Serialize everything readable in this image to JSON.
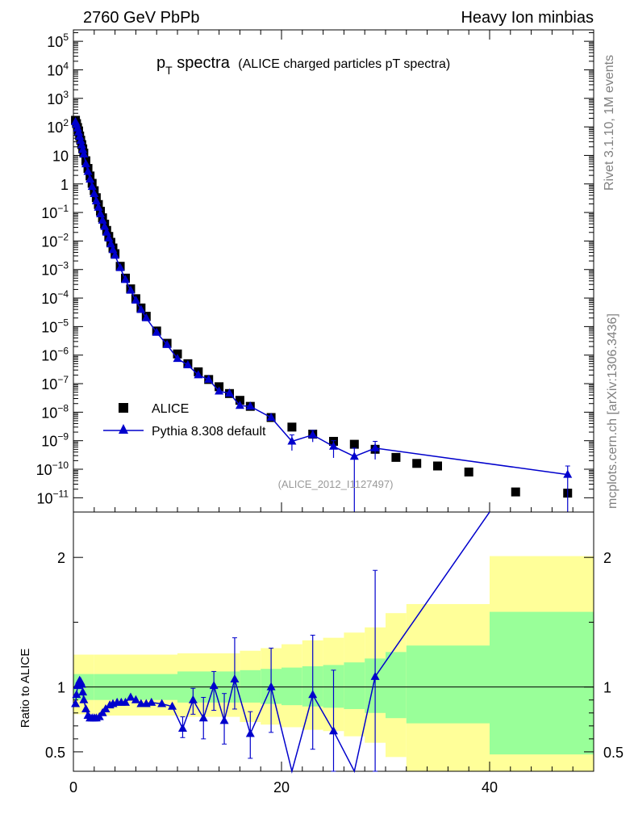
{
  "header": {
    "left": "2760 GeV PbPb",
    "right": "Heavy Ion minbias"
  },
  "side_labels": {
    "top": "Rivet 3.1.10,  1M events",
    "bottom": "mcplots.cern.ch [arXiv:1306.3436]"
  },
  "chart_data": [
    {
      "type": "scatter",
      "title_main": "p",
      "title_sub": "T",
      "title_rest": " spectra",
      "title_note": "(ALICE charged particles pT spectra)",
      "reference_note": "(ALICE_2012_I1127497)",
      "xlim": [
        0,
        50
      ],
      "ylog": true,
      "ylim_exp": [
        -11.5,
        5.4
      ],
      "yticks": [
        {
          "exp": 5,
          "label": "10",
          "sup": "5"
        },
        {
          "exp": 4,
          "label": "10",
          "sup": "4"
        },
        {
          "exp": 3,
          "label": "10",
          "sup": "3"
        },
        {
          "exp": 2,
          "label": "10",
          "sup": "2"
        },
        {
          "exp": 1,
          "label": "10",
          "sup": ""
        },
        {
          "exp": 0,
          "label": "1",
          "sup": ""
        },
        {
          "exp": -1,
          "label": "10",
          "sup": "−1"
        },
        {
          "exp": -2,
          "label": "10",
          "sup": "−2"
        },
        {
          "exp": -3,
          "label": "10",
          "sup": "−3"
        },
        {
          "exp": -4,
          "label": "10",
          "sup": "−4"
        },
        {
          "exp": -5,
          "label": "10",
          "sup": "−5"
        },
        {
          "exp": -6,
          "label": "10",
          "sup": "−6"
        },
        {
          "exp": -7,
          "label": "10",
          "sup": "−7"
        },
        {
          "exp": -8,
          "label": "10",
          "sup": "−8"
        },
        {
          "exp": -9,
          "label": "10",
          "sup": "−9"
        },
        {
          "exp": -10,
          "label": "10",
          "sup": "−10"
        },
        {
          "exp": -11,
          "label": "10",
          "sup": "−11"
        }
      ],
      "legend": {
        "position": "lower-left",
        "items": [
          "ALICE",
          "Pythia 8.308 default"
        ]
      },
      "series": [
        {
          "name": "ALICE",
          "marker": "square",
          "color": "#000000",
          "x": [
            0.2,
            0.3,
            0.4,
            0.5,
            0.6,
            0.7,
            0.8,
            0.9,
            1.0,
            1.2,
            1.4,
            1.6,
            1.8,
            2.0,
            2.2,
            2.4,
            2.6,
            2.8,
            3.0,
            3.2,
            3.4,
            3.6,
            3.8,
            4.0,
            4.5,
            5.0,
            5.5,
            6.0,
            6.5,
            7.0,
            8.0,
            9.0,
            10.0,
            11.0,
            12.0,
            13.0,
            14.0,
            15.0,
            16.0,
            17.0,
            19.0,
            21.0,
            23.0,
            25.0,
            27.0,
            29.0,
            31.0,
            33.0,
            35.0,
            38.0,
            42.5,
            47.5
          ],
          "y": [
            170.0,
            130.0,
            95.0,
            68.0,
            48.0,
            34.0,
            24.0,
            17.0,
            12.0,
            6.5,
            3.5,
            1.9,
            1.05,
            0.58,
            0.33,
            0.19,
            0.11,
            0.065,
            0.039,
            0.0235,
            0.0145,
            0.009,
            0.0057,
            0.0036,
            0.0013,
            0.0005,
            0.00021,
            9.5e-05,
            4.5e-05,
            2.3e-05,
            7e-06,
            2.6e-06,
            1.1e-06,
            5e-07,
            2.6e-07,
            1.4e-07,
            7.8e-08,
            4.5e-08,
            2.6e-08,
            1.6e-08,
            6.5e-09,
            3e-09,
            1.7e-09,
            9.5e-10,
            7.5e-10,
            5e-10,
            2.6e-10,
            1.6e-10,
            1.3e-10,
            8e-11,
            1.6e-11,
            1.45e-11
          ]
        },
        {
          "name": "Pythia 8.308 default",
          "marker": "triangle",
          "color": "#0000cc",
          "x": [
            0.2,
            0.3,
            0.4,
            0.5,
            0.6,
            0.7,
            0.8,
            0.9,
            1.0,
            1.2,
            1.4,
            1.6,
            1.8,
            2.0,
            2.2,
            2.4,
            2.6,
            2.8,
            3.0,
            3.2,
            3.4,
            3.6,
            3.8,
            4.0,
            4.5,
            5.0,
            5.5,
            6.0,
            6.5,
            7.0,
            8.0,
            9.0,
            10.0,
            11.0,
            12.0,
            13.0,
            14.0,
            15.0,
            16.0,
            17.0,
            19.0,
            21.0,
            23.0,
            25.0,
            27.0,
            29.0,
            47.5
          ],
          "y": [
            150.0,
            120.0,
            90.0,
            65.0,
            46.0,
            33.0,
            23.0,
            16.0,
            11.0,
            5.0,
            2.7,
            1.45,
            0.8,
            0.45,
            0.25,
            0.15,
            0.088,
            0.053,
            0.032,
            0.02,
            0.0125,
            0.0078,
            0.0049,
            0.0031,
            0.00115,
            0.00044,
            0.000185,
            8.3e-05,
            3.9e-05,
            2e-05,
            6.2e-06,
            2.3e-06,
            7.5e-07,
            4.5e-07,
            2e-07,
            1.4e-07,
            5.4e-08,
            4.6e-08,
            1.7e-08,
            1.6e-08,
            6.5e-09,
            9.5e-10,
            1.6e-09,
            6.3e-10,
            2.8e-10,
            5.5e-10,
            6.5e-11
          ],
          "yerr_exp": [
            {
              "x": 21.0,
              "lo": 4.5e-10,
              "hi": 1.6e-09
            },
            {
              "x": 23.0,
              "lo": 9e-10,
              "hi": 2.3e-09
            },
            {
              "x": 25.0,
              "lo": 2.5e-10,
              "hi": 1e-09
            },
            {
              "x": 27.0,
              "lo": 1e-13,
              "hi": 5.5e-10
            },
            {
              "x": 29.0,
              "lo": 2.2e-10,
              "hi": 9.5e-10
            },
            {
              "x": 47.5,
              "lo": 1e-13,
              "hi": 1.3e-10
            }
          ]
        }
      ]
    },
    {
      "type": "line",
      "ylabel": "Ratio to ALICE",
      "xlim": [
        0,
        50
      ],
      "ylim": [
        0.35,
        2.35
      ],
      "xticks": [
        0,
        20,
        40
      ],
      "yticks": [
        0.5,
        1,
        2
      ],
      "bands": [
        {
          "x0": 0.0,
          "x1": 2.0,
          "g_lo": 0.9,
          "g_hi": 1.1,
          "y_lo": 0.79,
          "y_hi": 1.25
        },
        {
          "x0": 2.0,
          "x1": 10.0,
          "g_lo": 0.9,
          "g_hi": 1.1,
          "y_lo": 0.78,
          "y_hi": 1.25
        },
        {
          "x0": 10.0,
          "x1": 16.0,
          "g_lo": 0.88,
          "g_hi": 1.12,
          "y_lo": 0.77,
          "y_hi": 1.26
        },
        {
          "x0": 16.0,
          "x1": 18.0,
          "g_lo": 0.88,
          "g_hi": 1.13,
          "y_lo": 0.73,
          "y_hi": 1.28
        },
        {
          "x0": 18.0,
          "x1": 20.0,
          "g_lo": 0.87,
          "g_hi": 1.14,
          "y_lo": 0.71,
          "y_hi": 1.3
        },
        {
          "x0": 20.0,
          "x1": 22.0,
          "g_lo": 0.86,
          "g_hi": 1.15,
          "y_lo": 0.69,
          "y_hi": 1.33
        },
        {
          "x0": 22.0,
          "x1": 24.0,
          "g_lo": 0.85,
          "g_hi": 1.16,
          "y_lo": 0.67,
          "y_hi": 1.36
        },
        {
          "x0": 24.0,
          "x1": 26.0,
          "g_lo": 0.84,
          "g_hi": 1.17,
          "y_lo": 0.66,
          "y_hi": 1.38
        },
        {
          "x0": 26.0,
          "x1": 28.0,
          "g_lo": 0.83,
          "g_hi": 1.19,
          "y_lo": 0.62,
          "y_hi": 1.42
        },
        {
          "x0": 28.0,
          "x1": 30.0,
          "g_lo": 0.8,
          "g_hi": 1.22,
          "y_lo": 0.57,
          "y_hi": 1.46
        },
        {
          "x0": 30.0,
          "x1": 32.0,
          "g_lo": 0.76,
          "g_hi": 1.27,
          "y_lo": 0.46,
          "y_hi": 1.57
        },
        {
          "x0": 32.0,
          "x1": 40.0,
          "g_lo": 0.72,
          "g_hi": 1.32,
          "y_lo": 0.35,
          "y_hi": 1.64
        },
        {
          "x0": 40.0,
          "x1": 50.0,
          "g_lo": 0.48,
          "g_hi": 1.58,
          "y_lo": 0.35,
          "y_hi": 2.01
        }
      ],
      "ratio": {
        "x": [
          0.2,
          0.3,
          0.4,
          0.5,
          0.6,
          0.7,
          0.8,
          0.9,
          1.0,
          1.2,
          1.4,
          1.6,
          1.8,
          2.0,
          2.2,
          2.5,
          2.8,
          3.1,
          3.5,
          3.8,
          4.2,
          4.6,
          5.0,
          5.5,
          6.0,
          6.5,
          7.0,
          7.5,
          8.5,
          9.5,
          10.5,
          11.5,
          12.5,
          13.5,
          14.5,
          15.5,
          17.0,
          19.0,
          21.0,
          23.0,
          25.0,
          27.0,
          29.0,
          40.0
        ],
        "y": [
          0.87,
          0.94,
          1.01,
          1.03,
          1.05,
          1.04,
          1.02,
          0.96,
          0.9,
          0.83,
          0.78,
          0.76,
          0.76,
          0.76,
          0.76,
          0.77,
          0.8,
          0.83,
          0.86,
          0.87,
          0.88,
          0.88,
          0.88,
          0.92,
          0.9,
          0.87,
          0.87,
          0.88,
          0.87,
          0.85,
          0.68,
          0.9,
          0.76,
          1.01,
          0.74,
          1.06,
          0.64,
          1.0,
          0.35,
          0.94,
          0.66,
          0.35,
          1.08,
          2.35
        ],
        "err": [
          {
            "x": 10.5,
            "lo": 0.61,
            "hi": 0.77
          },
          {
            "x": 11.5,
            "lo": 0.79,
            "hi": 0.99
          },
          {
            "x": 12.5,
            "lo": 0.6,
            "hi": 0.92
          },
          {
            "x": 13.5,
            "lo": 0.82,
            "hi": 1.12
          },
          {
            "x": 14.5,
            "lo": 0.56,
            "hi": 0.95
          },
          {
            "x": 15.5,
            "lo": 0.83,
            "hi": 1.38
          },
          {
            "x": 17.0,
            "lo": 0.45,
            "hi": 0.81
          },
          {
            "x": 19.0,
            "lo": 0.65,
            "hi": 1.3
          },
          {
            "x": 23.0,
            "lo": 0.52,
            "hi": 1.4
          },
          {
            "x": 25.0,
            "lo": 0.3,
            "hi": 1.13
          },
          {
            "x": 29.0,
            "lo": 0.3,
            "hi": 1.9
          }
        ]
      },
      "colors": {
        "green_band": "#99ff99",
        "yellow_band": "#ffff99",
        "mc": "#0000cc"
      }
    }
  ]
}
